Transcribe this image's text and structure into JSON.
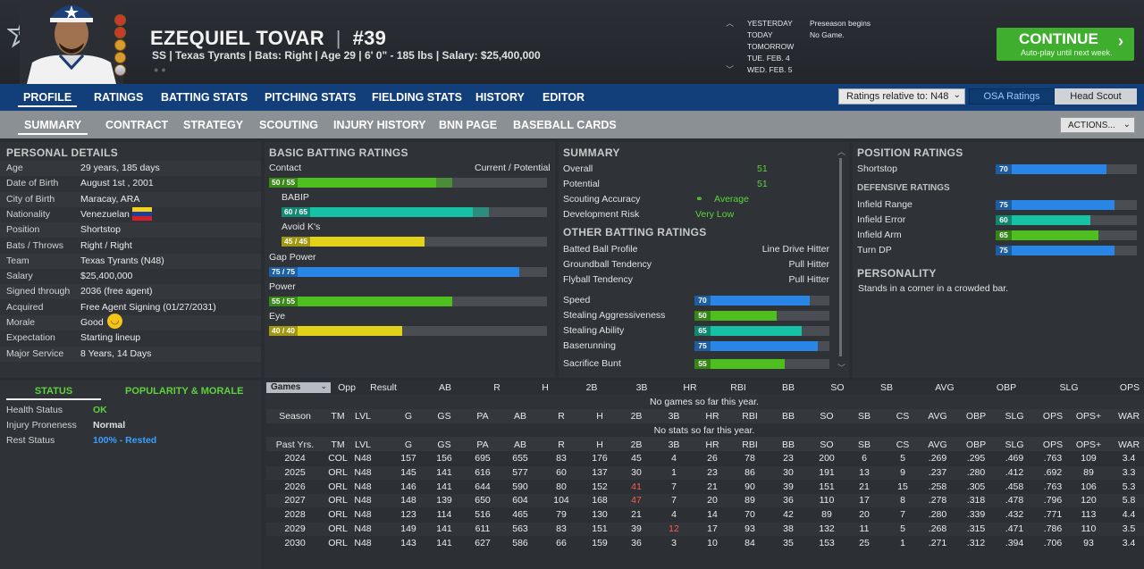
{
  "player": {
    "name": "EZEQUIEL TOVAR",
    "number": "#39",
    "info": "SS | Texas Tyrants | Bats: Right | Age 29 | 6' 0\" - 185 lbs | Salary: $25,400,000"
  },
  "calendar": {
    "days": [
      "YESTERDAY",
      "TODAY",
      "TOMORROW",
      "TUE. FEB. 4",
      "WED. FEB. 5"
    ],
    "events": [
      "Preseason begins",
      "No Game."
    ]
  },
  "continue": {
    "label": "CONTINUE",
    "sub": "Auto-play until next week."
  },
  "nav1": [
    "PROFILE",
    "RATINGS",
    "BATTING STATS",
    "PITCHING STATS",
    "FIELDING STATS",
    "HISTORY",
    "EDITOR"
  ],
  "ratings_select": "Ratings relative to: N48",
  "osa": "OSA Ratings",
  "head_scout": "Head Scout",
  "nav2": [
    "SUMMARY",
    "CONTRACT",
    "STRATEGY",
    "SCOUTING",
    "INJURY HISTORY",
    "BNN PAGE",
    "BASEBALL CARDS"
  ],
  "actions": "ACTIONS...",
  "personal": {
    "title": "PERSONAL DETAILS",
    "rows": [
      [
        "Age",
        "29 years, 185 days"
      ],
      [
        "Date of Birth",
        "August 1st , 2001"
      ],
      [
        "City of Birth",
        "Maracay, ARA"
      ],
      [
        "Nationality",
        "Venezuelan"
      ],
      [
        "Position",
        "Shortstop"
      ],
      [
        "Bats / Throws",
        "Right / Right"
      ],
      [
        "Team",
        "Texas Tyrants (N48)"
      ],
      [
        "Salary",
        "$25,400,000"
      ],
      [
        "Signed through",
        "2036 (free agent)"
      ],
      [
        "Acquired",
        "Free Agent Signing (01/27/2031)"
      ],
      [
        "Morale",
        "Good"
      ],
      [
        "Expectation",
        "Starting lineup"
      ],
      [
        "Major Service",
        "8 Years, 14 Days"
      ]
    ]
  },
  "status": {
    "tab1": "STATUS",
    "tab2": "POPULARITY & MORALE",
    "rows": [
      [
        "Health Status",
        "OK"
      ],
      [
        "Injury Proneness",
        "Normal"
      ],
      [
        "Rest Status",
        "100% - Rested"
      ]
    ]
  },
  "batting": {
    "title": "BASIC BATTING RATINGS",
    "col": "Current / Potential",
    "rows": [
      {
        "name": "Contact",
        "label": "50 / 55",
        "cur": 50,
        "pot": 55,
        "color": "green"
      },
      {
        "name": "BABIP",
        "label": "60 / 65",
        "cur": 60,
        "pot": 65,
        "color": "teal"
      },
      {
        "name": "Avoid K's",
        "label": "45 / 45",
        "cur": 45,
        "pot": 45,
        "color": "yellow"
      },
      {
        "name": "Gap Power",
        "label": "75 / 75",
        "cur": 75,
        "pot": 75,
        "color": "blue"
      },
      {
        "name": "Power",
        "label": "55 / 55",
        "cur": 55,
        "pot": 55,
        "color": "green"
      },
      {
        "name": "Eye",
        "label": "40 / 40",
        "cur": 40,
        "pot": 40,
        "color": "yellow"
      }
    ]
  },
  "summary": {
    "title": "SUMMARY",
    "rows": [
      [
        "Overall",
        "51"
      ],
      [
        "Potential",
        "51"
      ],
      [
        "Scouting Accuracy",
        "Average"
      ],
      [
        "Development Risk",
        "Very Low"
      ]
    ],
    "other_title": "OTHER BATTING RATINGS",
    "other": [
      [
        "Batted Ball Profile",
        "Line Drive Hitter"
      ],
      [
        "Groundball Tendency",
        "Pull Hitter"
      ],
      [
        "Flyball Tendency",
        "Pull Hitter"
      ]
    ],
    "bars": [
      {
        "name": "Speed",
        "value": 70,
        "color": "blue"
      },
      {
        "name": "Stealing Aggressiveness",
        "value": 50,
        "color": "green"
      },
      {
        "name": "Stealing Ability",
        "value": 65,
        "color": "teal"
      },
      {
        "name": "Baserunning",
        "value": 75,
        "color": "blue"
      },
      {
        "name": "Sacrifice Bunt",
        "value": 55,
        "color": "green"
      }
    ]
  },
  "position": {
    "title": "POSITION RATINGS",
    "pos": {
      "name": "Shortstop",
      "value": 70,
      "color": "blue"
    },
    "def_title": "DEFENSIVE RATINGS",
    "def": [
      {
        "name": "Infield Range",
        "value": 75,
        "color": "blue"
      },
      {
        "name": "Infield Error",
        "value": 60,
        "color": "teal"
      },
      {
        "name": "Infield Arm",
        "value": 65,
        "color": "green"
      },
      {
        "name": "Turn DP",
        "value": 75,
        "color": "blue"
      }
    ],
    "pers_title": "PERSONALITY",
    "pers": "Stands in a corner in a crowded bar."
  },
  "games": {
    "select": "Games",
    "headers": [
      "Opp",
      "Result",
      "AB",
      "R",
      "H",
      "2B",
      "3B",
      "HR",
      "RBI",
      "BB",
      "SO",
      "SB",
      "AVG",
      "OBP",
      "SLG",
      "OPS"
    ],
    "empty": "No games so far this year."
  },
  "season": {
    "headers": [
      "Season",
      "TM",
      "LVL",
      "G",
      "GS",
      "PA",
      "AB",
      "R",
      "H",
      "2B",
      "3B",
      "HR",
      "RBI",
      "BB",
      "SO",
      "SB",
      "CS",
      "AVG",
      "OBP",
      "SLG",
      "OPS",
      "OPS+",
      "WAR"
    ],
    "empty": "No stats so far this year."
  },
  "past": {
    "headers": [
      "Past Yrs.",
      "TM",
      "LVL",
      "G",
      "GS",
      "PA",
      "AB",
      "R",
      "H",
      "2B",
      "3B",
      "HR",
      "RBI",
      "BB",
      "SO",
      "SB",
      "CS",
      "AVG",
      "OBP",
      "SLG",
      "OPS",
      "OPS+",
      "WAR"
    ],
    "rows": [
      [
        "2024",
        "COL",
        "N48",
        "157",
        "156",
        "695",
        "655",
        "83",
        "176",
        "45",
        "4",
        "26",
        "78",
        "23",
        "200",
        "6",
        "5",
        ".269",
        ".295",
        ".469",
        ".763",
        "109",
        "3.4"
      ],
      [
        "2025",
        "ORL",
        "N48",
        "145",
        "141",
        "616",
        "577",
        "60",
        "137",
        "30",
        "1",
        "23",
        "86",
        "30",
        "191",
        "13",
        "9",
        ".237",
        ".280",
        ".412",
        ".692",
        "89",
        "3.3"
      ],
      [
        "2026",
        "ORL",
        "N48",
        "146",
        "141",
        "644",
        "590",
        "80",
        "152",
        "41",
        "7",
        "21",
        "90",
        "39",
        "151",
        "21",
        "15",
        ".258",
        ".305",
        ".458",
        ".763",
        "106",
        "5.3"
      ],
      [
        "2027",
        "ORL",
        "N48",
        "148",
        "139",
        "650",
        "604",
        "104",
        "168",
        "47",
        "7",
        "20",
        "89",
        "36",
        "110",
        "17",
        "8",
        ".278",
        ".318",
        ".478",
        ".796",
        "120",
        "5.8"
      ],
      [
        "2028",
        "ORL",
        "N48",
        "123",
        "114",
        "516",
        "465",
        "79",
        "130",
        "21",
        "4",
        "14",
        "70",
        "42",
        "89",
        "20",
        "7",
        ".280",
        ".339",
        ".432",
        ".771",
        "113",
        "4.4"
      ],
      [
        "2029",
        "ORL",
        "N48",
        "149",
        "141",
        "611",
        "563",
        "83",
        "151",
        "39",
        "12",
        "17",
        "93",
        "38",
        "132",
        "11",
        "5",
        ".268",
        ".315",
        ".471",
        ".786",
        "110",
        "3.5"
      ],
      [
        "2030",
        "ORL",
        "N48",
        "143",
        "141",
        "627",
        "586",
        "66",
        "159",
        "36",
        "3",
        "10",
        "84",
        "35",
        "153",
        "25",
        "1",
        ".271",
        ".312",
        ".394",
        ".706",
        "93",
        "3.4"
      ]
    ]
  }
}
